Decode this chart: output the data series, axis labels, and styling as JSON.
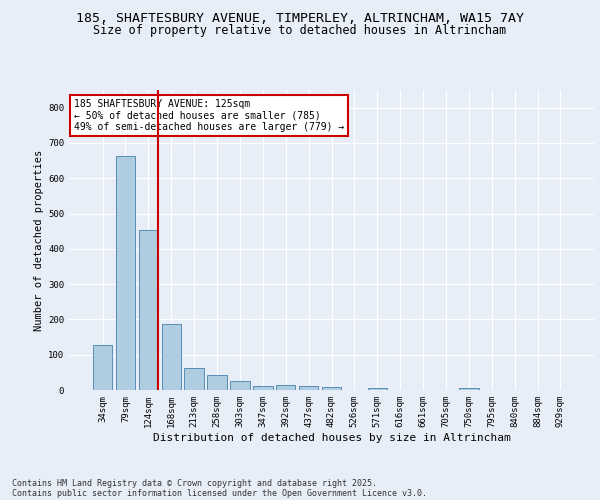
{
  "title_line1": "185, SHAFTESBURY AVENUE, TIMPERLEY, ALTRINCHAM, WA15 7AY",
  "title_line2": "Size of property relative to detached houses in Altrincham",
  "xlabel": "Distribution of detached houses by size in Altrincham",
  "ylabel": "Number of detached properties",
  "categories": [
    "34sqm",
    "79sqm",
    "124sqm",
    "168sqm",
    "213sqm",
    "258sqm",
    "303sqm",
    "347sqm",
    "392sqm",
    "437sqm",
    "482sqm",
    "526sqm",
    "571sqm",
    "616sqm",
    "661sqm",
    "705sqm",
    "750sqm",
    "795sqm",
    "840sqm",
    "884sqm",
    "929sqm"
  ],
  "values": [
    128,
    662,
    453,
    188,
    62,
    42,
    25,
    12,
    13,
    12,
    9,
    0,
    6,
    0,
    0,
    0,
    6,
    0,
    0,
    0,
    0
  ],
  "bar_color": "#aecde1",
  "bar_edge_color": "#5a8db5",
  "highlight_bar_index": 2,
  "highlight_line_color": "#cc0000",
  "annotation_text_line1": "185 SHAFTESBURY AVENUE: 125sqm",
  "annotation_text_line2": "← 50% of detached houses are smaller (785)",
  "annotation_text_line3": "49% of semi-detached houses are larger (779) →",
  "annotation_box_color": "#cc0000",
  "background_color": "#e8eef8",
  "plot_bg_color": "#e8eef8",
  "ylim": [
    0,
    850
  ],
  "yticks": [
    0,
    100,
    200,
    300,
    400,
    500,
    600,
    700,
    800
  ],
  "footer_line1": "Contains HM Land Registry data © Crown copyright and database right 2025.",
  "footer_line2": "Contains public sector information licensed under the Open Government Licence v3.0.",
  "title_fontsize": 9.5,
  "subtitle_fontsize": 8.5,
  "axis_label_fontsize": 7.5,
  "tick_fontsize": 6.5,
  "annotation_fontsize": 7,
  "footer_fontsize": 6
}
